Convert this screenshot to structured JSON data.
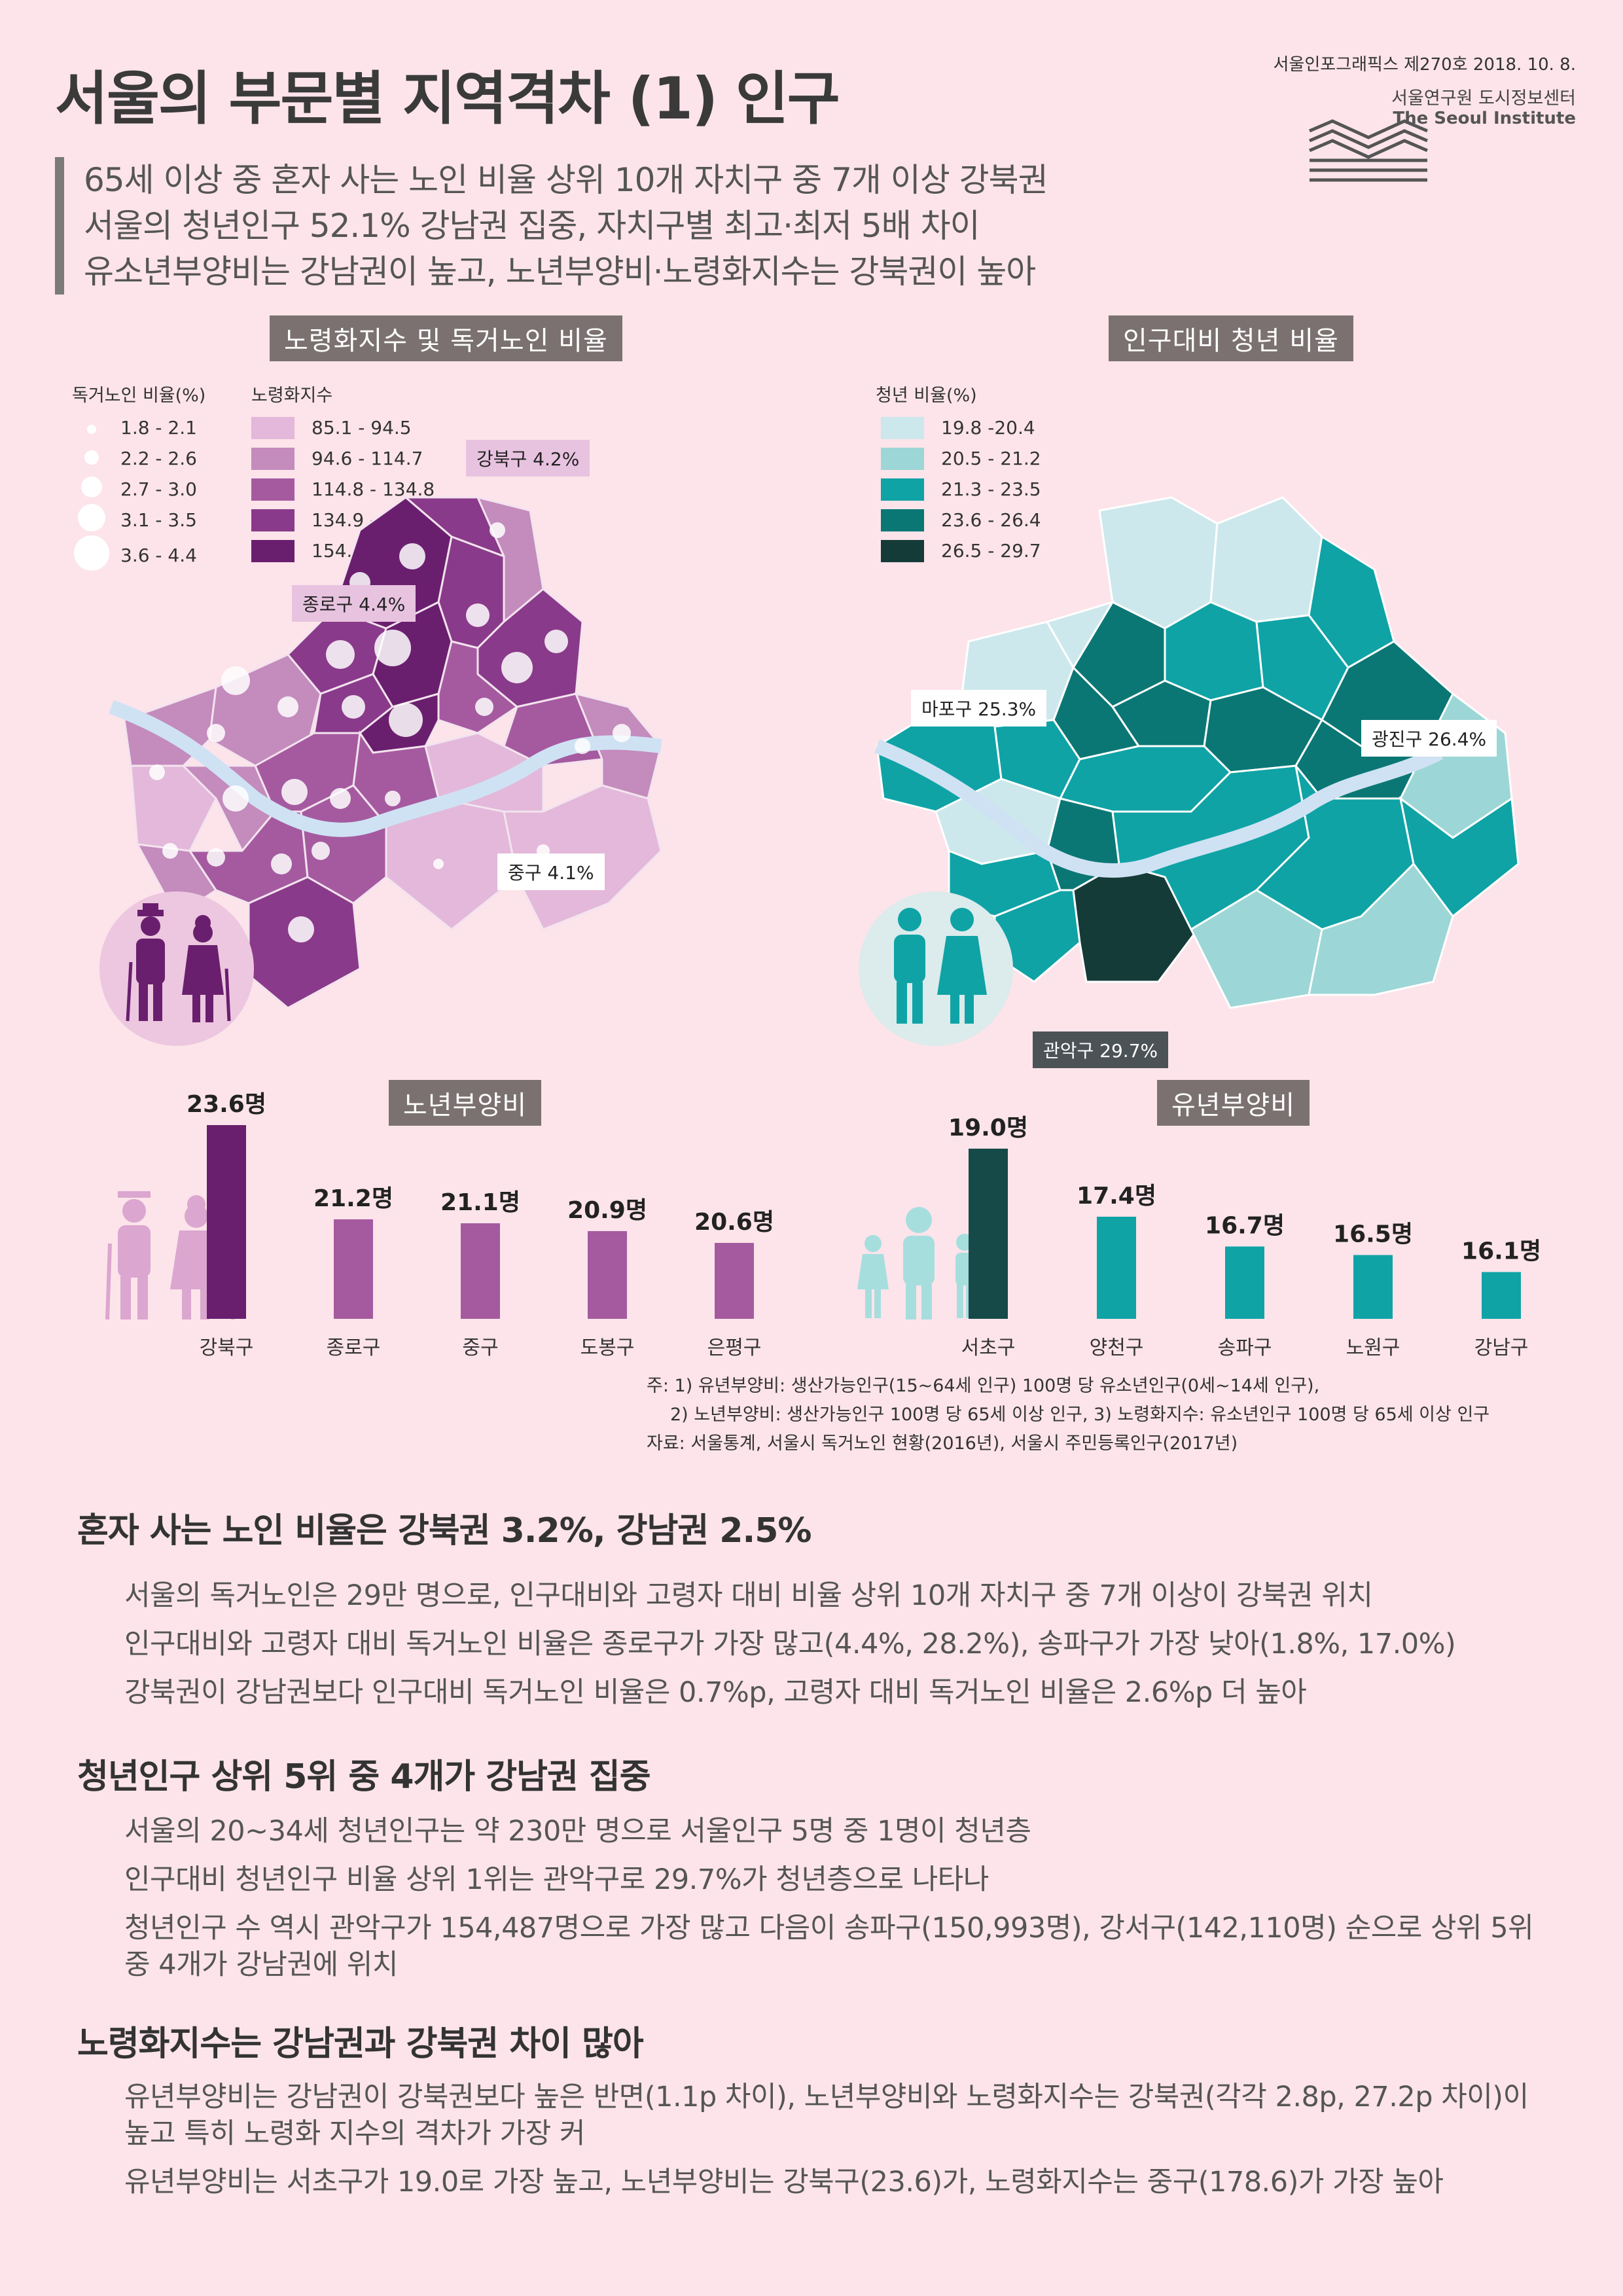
{
  "header": {
    "title": "서울의 부문별 지역격차 (1) 인구",
    "pub_no": "서울인포그래픽스 제270호 2018. 10. 8.",
    "institute_ko": "서울연구원 도시정보센터",
    "institute_en": "The Seoul Institute"
  },
  "summary": [
    "65세 이상 중 혼자 사는 노인 비율 상위 10개 자치구 중 7개 이상 강북권",
    "서울의 청년인구 52.1% 강남권 집중, 자치구별 최고·최저 5배 차이",
    "유소년부양비는 강남권이 높고, 노년부양비·노령화지수는 강북권이 높아"
  ],
  "map_left": {
    "tag": "노령화지수 및 독거노인 비율",
    "dot_legend_title": "독거노인 비율(%)",
    "dot_legend": [
      "1.8 - 2.1",
      "2.2 - 2.6",
      "2.7 - 3.0",
      "3.1 - 3.5",
      "3.6 - 4.4"
    ],
    "color_legend_title": "노령화지수",
    "color_legend": [
      "85.1 - 94.5",
      "94.6 - 114.7",
      "114.8 - 134.8",
      "134.9 - 154.5",
      "154.6 - 178.6"
    ],
    "colors": [
      "#e3b8da",
      "#c48bbd",
      "#a55aa0",
      "#8a3a8a",
      "#6a1f6e"
    ],
    "callouts": [
      "강북구 4.2%",
      "종로구 4.4%",
      "중구 4.1%"
    ]
  },
  "map_right": {
    "tag": "인구대비 청년 비율",
    "legend_title": "청년 비율(%)",
    "legend": [
      "19.8 -20.4",
      "20.5 - 21.2",
      "21.3 - 23.5",
      "23.6 - 26.4",
      "26.5 - 29.7"
    ],
    "colors": [
      "#cde8ec",
      "#9dd6d6",
      "#0fa3a6",
      "#0b7775",
      "#153b38"
    ],
    "callouts": [
      "마포구 25.3%",
      "광진구 26.4%",
      "관악구 29.7%"
    ]
  },
  "chart_data": [
    {
      "type": "bar",
      "title": "노년부양비",
      "categories": [
        "강북구",
        "종로구",
        "중구",
        "도봉구",
        "은평구"
      ],
      "values": [
        23.6,
        21.2,
        21.1,
        20.9,
        20.6
      ],
      "value_labels": [
        "23.6명",
        "21.2명",
        "21.1명",
        "20.9명",
        "20.6명"
      ],
      "colors": [
        "#6a1f6e",
        "#a55aa0",
        "#a55aa0",
        "#a55aa0",
        "#a55aa0"
      ]
    },
    {
      "type": "bar",
      "title": "유년부양비",
      "categories": [
        "서초구",
        "양천구",
        "송파구",
        "노원구",
        "강남구"
      ],
      "values": [
        19.0,
        17.4,
        16.7,
        16.5,
        16.1
      ],
      "value_labels": [
        "19.0명",
        "17.4명",
        "16.7명",
        "16.5명",
        "16.1명"
      ],
      "colors": [
        "#154a48",
        "#0fa3a6",
        "#0fa3a6",
        "#0fa3a6",
        "#0fa3a6"
      ]
    }
  ],
  "notes": [
    "주: 1) 유년부양비: 생산가능인구(15~64세 인구) 100명 당 유소년인구(0세~14세 인구),",
    "2) 노년부양비: 생산가능인구 100명 당 65세 이상 인구, 3) 노령화지수: 유소년인구 100명 당 65세 이상 인구",
    "자료: 서울통계, 서울시 독거노인 현황(2016년), 서울시 주민등록인구(2017년)"
  ],
  "sections": [
    {
      "heading": "혼자 사는 노인 비율은 강북권 3.2%, 강남권 2.5%",
      "paras": [
        "서울의 독거노인은 29만 명으로, 인구대비와 고령자 대비 비율 상위 10개 자치구 중 7개 이상이 강북권 위치",
        "인구대비와 고령자 대비 독거노인 비율은 종로구가 가장 많고(4.4%, 28.2%), 송파구가 가장 낮아(1.8%, 17.0%)",
        "강북권이 강남권보다 인구대비 독거노인 비율은 0.7%p, 고령자 대비 독거노인 비율은 2.6%p 더 높아"
      ]
    },
    {
      "heading": "청년인구 상위 5위 중 4개가 강남권 집중",
      "paras": [
        "서울의 20~34세 청년인구는 약 230만 명으로 서울인구 5명 중 1명이 청년층",
        "인구대비 청년인구 비율 상위 1위는 관악구로 29.7%가 청년층으로 나타나",
        "청년인구 수 역시 관악구가 154,487명으로 가장 많고 다음이 송파구(150,993명), 강서구(142,110명) 순으로 상위 5위 중 4개가 강남권에 위치"
      ]
    },
    {
      "heading": "노령화지수는 강남권과 강북권 차이 많아",
      "paras": [
        "유년부양비는 강남권이 강북권보다 높은 반면(1.1p 차이), 노년부양비와 노령화지수는 강북권(각각 2.8p, 27.2p 차이)이 높고 특히 노령화 지수의 격차가 가장 커",
        "유년부양비는 서초구가 19.0로 가장 높고, 노년부양비는 강북구(23.6)가, 노령화지수는 중구(178.6)가 가장 높아"
      ]
    }
  ]
}
